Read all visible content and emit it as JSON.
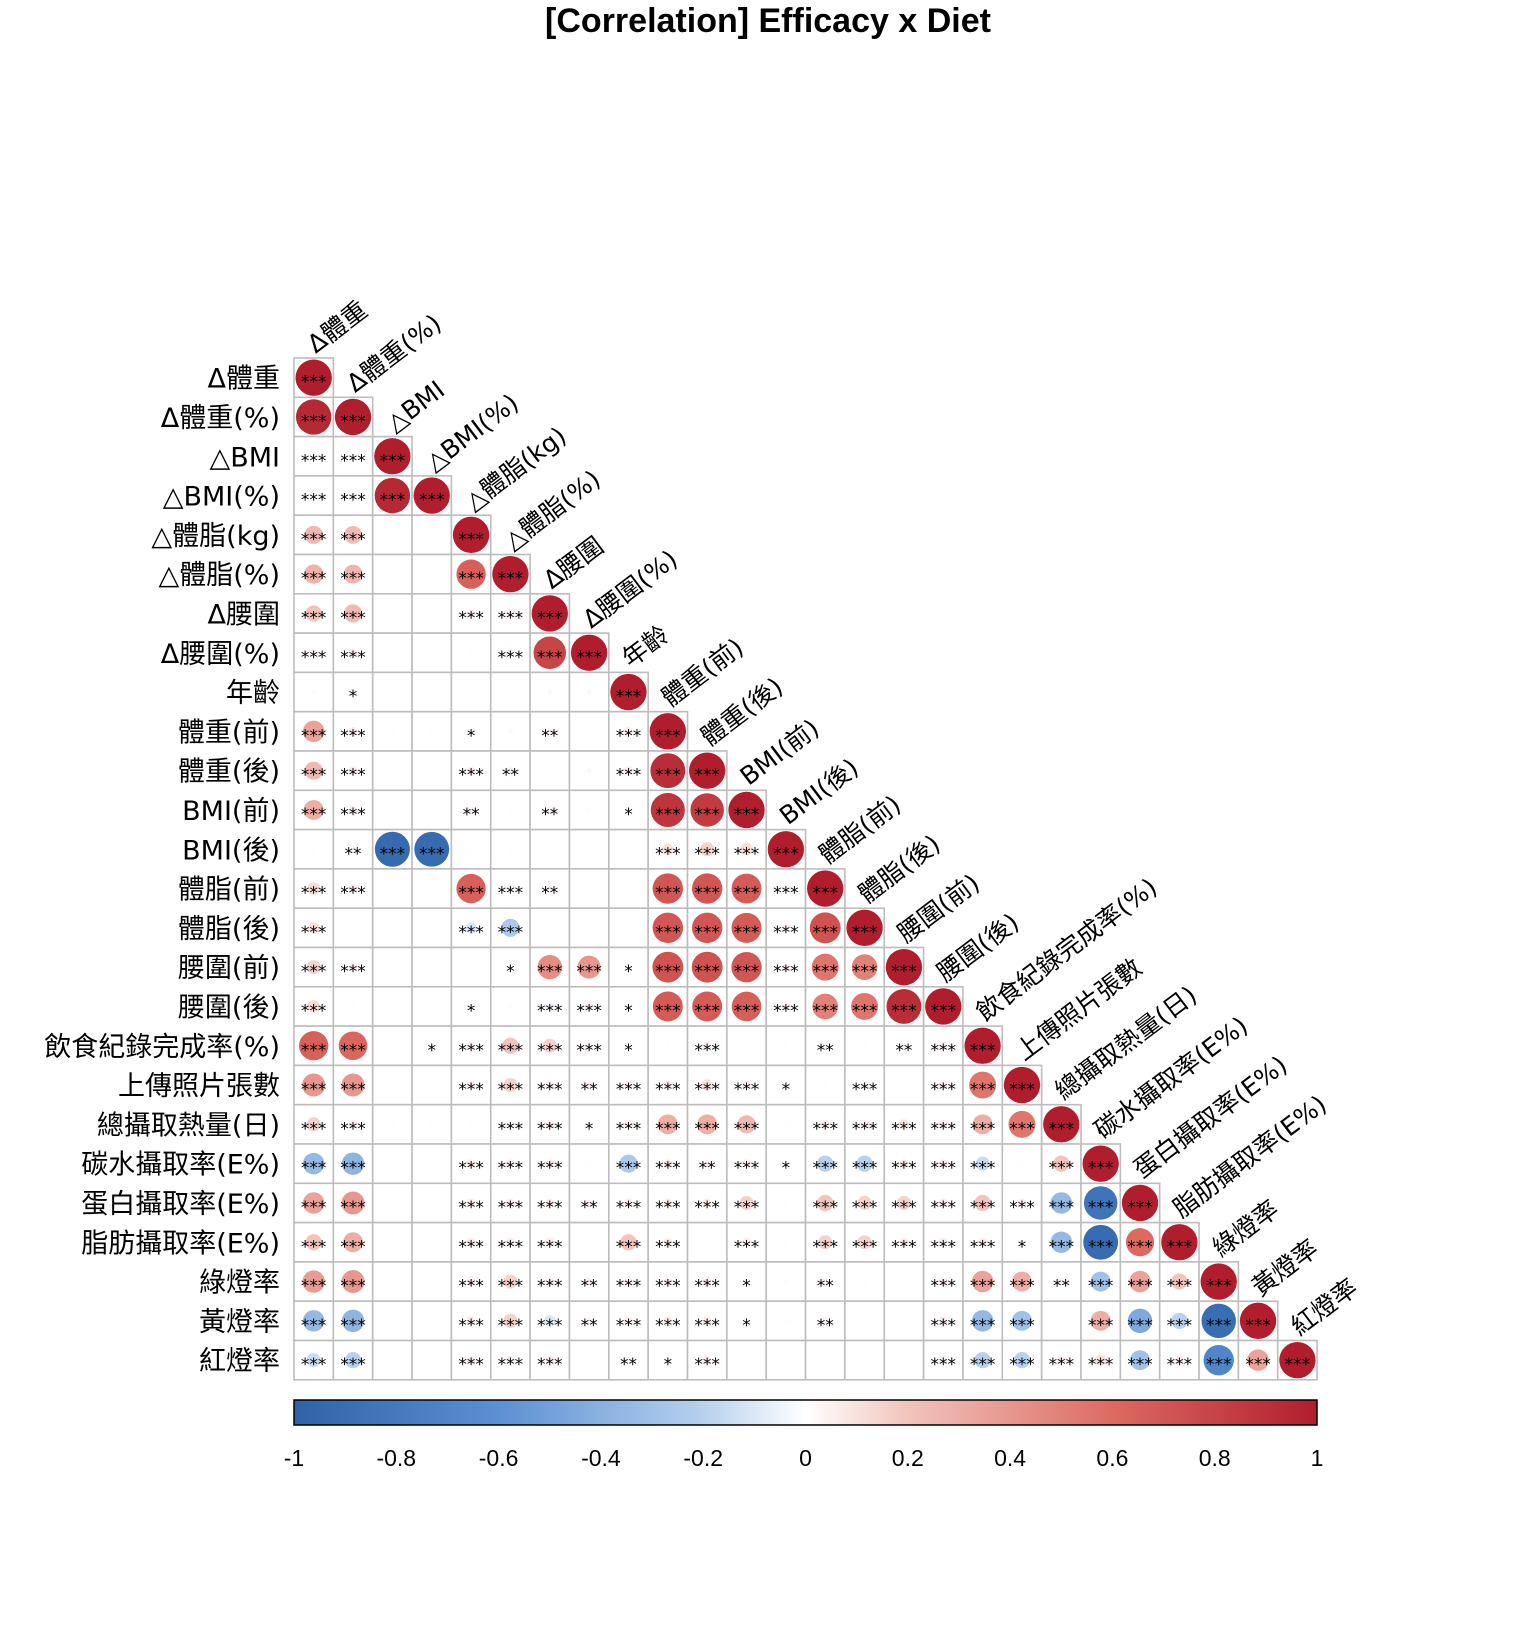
{
  "chart_data": {
    "type": "heatmap",
    "title": "[Correlation] Efficacy x Diet",
    "variables": [
      "Δ體重",
      "Δ體重(%)",
      "△BMI",
      "△BMI(%)",
      "△體脂(kg)",
      "△體脂(%)",
      "Δ腰圍",
      "Δ腰圍(%)",
      "年齡",
      "體重(前)",
      "體重(後)",
      "BMI(前)",
      "BMI(後)",
      "體脂(前)",
      "體脂(後)",
      "腰圍(前)",
      "腰圍(後)",
      "飲食紀錄完成率(%)",
      "上傳照片張數",
      "總攝取熱量(日)",
      "碳水攝取率(E%)",
      "蛋白攝取率(E%)",
      "脂肪攝取率(E%)",
      "綠燈率",
      "黃燈率",
      "紅燈率"
    ],
    "correlations": [
      [
        1
      ],
      [
        0.95,
        1
      ],
      [
        0.02,
        0.03,
        1
      ],
      [
        0.02,
        0.03,
        0.95,
        1
      ],
      [
        0.25,
        0.24,
        0.01,
        0.01,
        1
      ],
      [
        0.28,
        0.27,
        0.01,
        0.01,
        0.65,
        1
      ],
      [
        0.2,
        0.25,
        0.01,
        0.01,
        0.05,
        0.06,
        1
      ],
      [
        0.05,
        0.06,
        0.01,
        0.01,
        0.01,
        0.05,
        0.8,
        1
      ],
      [
        0.01,
        0.03,
        0.01,
        0.01,
        0.01,
        0.01,
        0.02,
        0.02,
        1
      ],
      [
        0.35,
        0.06,
        0.01,
        0.01,
        0.03,
        0.02,
        0.04,
        0.01,
        0.06,
        1
      ],
      [
        0.25,
        0.06,
        0.01,
        0.01,
        0.05,
        0.04,
        0.01,
        0.02,
        0.06,
        0.92,
        1
      ],
      [
        0.3,
        0.06,
        0.01,
        0.01,
        0.04,
        0.01,
        0.04,
        0.01,
        0.03,
        0.88,
        0.85,
        1
      ],
      [
        0.01,
        0.03,
        -0.93,
        -0.92,
        0.01,
        0.01,
        0.01,
        0.01,
        0.01,
        0.1,
        0.15,
        0.12,
        1
      ],
      [
        0.12,
        0.06,
        0.01,
        0.01,
        0.65,
        0.05,
        0.04,
        0.01,
        0.01,
        0.7,
        0.7,
        0.68,
        0.04,
        1
      ],
      [
        0.1,
        0.01,
        0.01,
        0.01,
        -0.1,
        -0.25,
        0.01,
        0.01,
        0.01,
        0.7,
        0.7,
        0.68,
        0.05,
        0.72,
        1
      ],
      [
        0.15,
        0.06,
        0.01,
        0.01,
        0.01,
        0.02,
        0.45,
        0.4,
        0.03,
        0.72,
        0.72,
        0.7,
        0.05,
        0.55,
        0.5,
        1
      ],
      [
        0.12,
        0.01,
        0.01,
        0.01,
        0.02,
        0.01,
        -0.05,
        0.05,
        0.03,
        0.68,
        0.68,
        0.66,
        0.05,
        0.5,
        0.55,
        0.92,
        1
      ],
      [
        0.65,
        0.62,
        0.01,
        0.02,
        0.05,
        0.2,
        0.15,
        0.05,
        0.03,
        0.01,
        0.05,
        0.01,
        0.01,
        0.03,
        0.01,
        0.03,
        0.06,
        1
      ],
      [
        0.4,
        0.4,
        0.01,
        0.01,
        0.06,
        0.15,
        0.06,
        0.04,
        0.06,
        0.06,
        0.1,
        0.06,
        0.02,
        0.01,
        0.05,
        0.01,
        0.06,
        0.55,
        1
      ],
      [
        0.15,
        0.06,
        0.01,
        0.01,
        0.01,
        0.05,
        0.06,
        0.02,
        0.06,
        0.3,
        0.3,
        0.25,
        0.01,
        0.06,
        0.06,
        0.08,
        0.06,
        0.3,
        0.55,
        1
      ],
      [
        -0.35,
        -0.38,
        0.01,
        0.01,
        0.06,
        0.06,
        0.06,
        0.01,
        -0.25,
        0.06,
        0.04,
        0.06,
        0.02,
        -0.2,
        -0.2,
        0.06,
        0.06,
        -0.15,
        0.01,
        0.2,
        1
      ],
      [
        0.35,
        0.4,
        0.01,
        0.01,
        0.06,
        0.06,
        0.06,
        0.04,
        0.06,
        0.06,
        0.06,
        0.15,
        0.01,
        0.2,
        0.15,
        0.15,
        0.06,
        0.2,
        0.06,
        -0.35,
        -0.85,
        1
      ],
      [
        0.2,
        0.3,
        0.01,
        0.01,
        0.06,
        0.06,
        0.06,
        0.01,
        0.2,
        0.06,
        0.01,
        0.06,
        0.01,
        0.15,
        0.15,
        0.06,
        0.06,
        0.06,
        0.03,
        -0.35,
        -0.92,
        0.6,
        1
      ],
      [
        0.38,
        0.4,
        0.01,
        0.01,
        0.06,
        0.15,
        0.06,
        0.04,
        0.06,
        0.06,
        0.06,
        0.03,
        0.01,
        0.04,
        0.01,
        0.01,
        0.06,
        0.35,
        0.3,
        0.04,
        -0.3,
        0.35,
        0.2,
        1
      ],
      [
        -0.35,
        -0.38,
        0.01,
        0.01,
        0.06,
        0.15,
        -0.1,
        0.04,
        0.06,
        0.06,
        0.06,
        0.03,
        0.01,
        0.04,
        0.01,
        0.01,
        0.06,
        -0.35,
        -0.3,
        0.01,
        0.3,
        -0.45,
        -0.2,
        -0.9,
        1
      ],
      [
        -0.15,
        -0.2,
        0.01,
        0.01,
        0.06,
        0.06,
        0.06,
        0.01,
        0.04,
        0.03,
        0.06,
        0.01,
        0.01,
        0.01,
        0.01,
        0.01,
        0.06,
        -0.2,
        -0.2,
        0.06,
        0.1,
        -0.3,
        0.06,
        -0.7,
        0.35,
        1
      ]
    ],
    "significance": [
      [
        "***"
      ],
      [
        "***",
        "***"
      ],
      [
        "***",
        "***",
        "***"
      ],
      [
        "***",
        "***",
        "***",
        "***"
      ],
      [
        "***",
        "***",
        "",
        "",
        "***"
      ],
      [
        "***",
        "***",
        "",
        "",
        "***",
        "***"
      ],
      [
        "***",
        "***",
        "",
        "",
        "***",
        "***",
        "***"
      ],
      [
        "***",
        "***",
        "",
        "",
        "",
        "***",
        "***",
        "***"
      ],
      [
        "",
        "*",
        "",
        "",
        "",
        "",
        "",
        "",
        "***"
      ],
      [
        "***",
        "***",
        "",
        "",
        "*",
        "",
        "**",
        "",
        "***",
        "***"
      ],
      [
        "***",
        "***",
        "",
        "",
        "***",
        "**",
        "",
        "",
        "***",
        "***",
        "***"
      ],
      [
        "***",
        "***",
        "",
        "",
        "**",
        "",
        "**",
        "",
        "*",
        "***",
        "***",
        "***"
      ],
      [
        "",
        "**",
        "***",
        "***",
        "",
        "",
        "",
        "",
        "",
        "***",
        "***",
        "***",
        "***"
      ],
      [
        "***",
        "***",
        "",
        "",
        "***",
        "***",
        "**",
        "",
        "",
        "***",
        "***",
        "***",
        "***",
        "***"
      ],
      [
        "***",
        "",
        "",
        "",
        "***",
        "***",
        "",
        "",
        "",
        "***",
        "***",
        "***",
        "***",
        "***",
        "***"
      ],
      [
        "***",
        "***",
        "",
        "",
        "",
        "*",
        "***",
        "***",
        "*",
        "***",
        "***",
        "***",
        "***",
        "***",
        "***",
        "***"
      ],
      [
        "***",
        "",
        "",
        "",
        "*",
        "",
        "***",
        "***",
        "*",
        "***",
        "***",
        "***",
        "***",
        "***",
        "***",
        "***",
        "***"
      ],
      [
        "***",
        "***",
        "",
        "*",
        "***",
        "***",
        "***",
        "***",
        "*",
        "",
        "***",
        "",
        "",
        "**",
        "",
        "**",
        "***",
        "***"
      ],
      [
        "***",
        "***",
        "",
        "",
        "***",
        "***",
        "***",
        "**",
        "***",
        "***",
        "***",
        "***",
        "*",
        "",
        "***",
        "",
        "***",
        "***",
        "***"
      ],
      [
        "***",
        "***",
        "",
        "",
        "",
        "***",
        "***",
        "*",
        "***",
        "***",
        "***",
        "***",
        "",
        "***",
        "***",
        "***",
        "***",
        "***",
        "***",
        "***"
      ],
      [
        "***",
        "***",
        "",
        "",
        "***",
        "***",
        "***",
        "",
        "***",
        "***",
        "**",
        "***",
        "*",
        "***",
        "***",
        "***",
        "***",
        "***",
        "",
        "***",
        "***"
      ],
      [
        "***",
        "***",
        "",
        "",
        "***",
        "***",
        "***",
        "**",
        "***",
        "***",
        "***",
        "***",
        "",
        "***",
        "***",
        "***",
        "***",
        "***",
        "***",
        "***",
        "***",
        "***"
      ],
      [
        "***",
        "***",
        "",
        "",
        "***",
        "***",
        "***",
        "",
        "***",
        "***",
        "",
        "***",
        "",
        "***",
        "***",
        "***",
        "***",
        "***",
        "*",
        "***",
        "***",
        "***",
        "***"
      ],
      [
        "***",
        "***",
        "",
        "",
        "***",
        "***",
        "***",
        "**",
        "***",
        "***",
        "***",
        "*",
        "",
        "**",
        "",
        "",
        "***",
        "***",
        "***",
        "**",
        "***",
        "***",
        "***",
        "***"
      ],
      [
        "***",
        "***",
        "",
        "",
        "***",
        "***",
        "***",
        "**",
        "***",
        "***",
        "***",
        "*",
        "",
        "**",
        "",
        "",
        "***",
        "***",
        "***",
        "",
        "***",
        "***",
        "***",
        "***",
        "***"
      ],
      [
        "***",
        "***",
        "",
        "",
        "***",
        "***",
        "***",
        "",
        "**",
        "*",
        "***",
        "",
        "",
        "",
        "",
        "",
        "***",
        "***",
        "***",
        "***",
        "***",
        "***",
        "***",
        "***",
        "***",
        "***"
      ]
    ],
    "colorbar_ticks": [
      "-1",
      "-0.8",
      "-0.6",
      "-0.4",
      "-0.2",
      "0",
      "0.2",
      "0.4",
      "0.6",
      "0.8",
      "1"
    ],
    "color_range": [
      -1,
      1
    ],
    "colors": {
      "negative": "#2f63a8",
      "neutral": "#ffffff",
      "positive": "#b01e2e",
      "grid": "#bdbdbd"
    }
  }
}
